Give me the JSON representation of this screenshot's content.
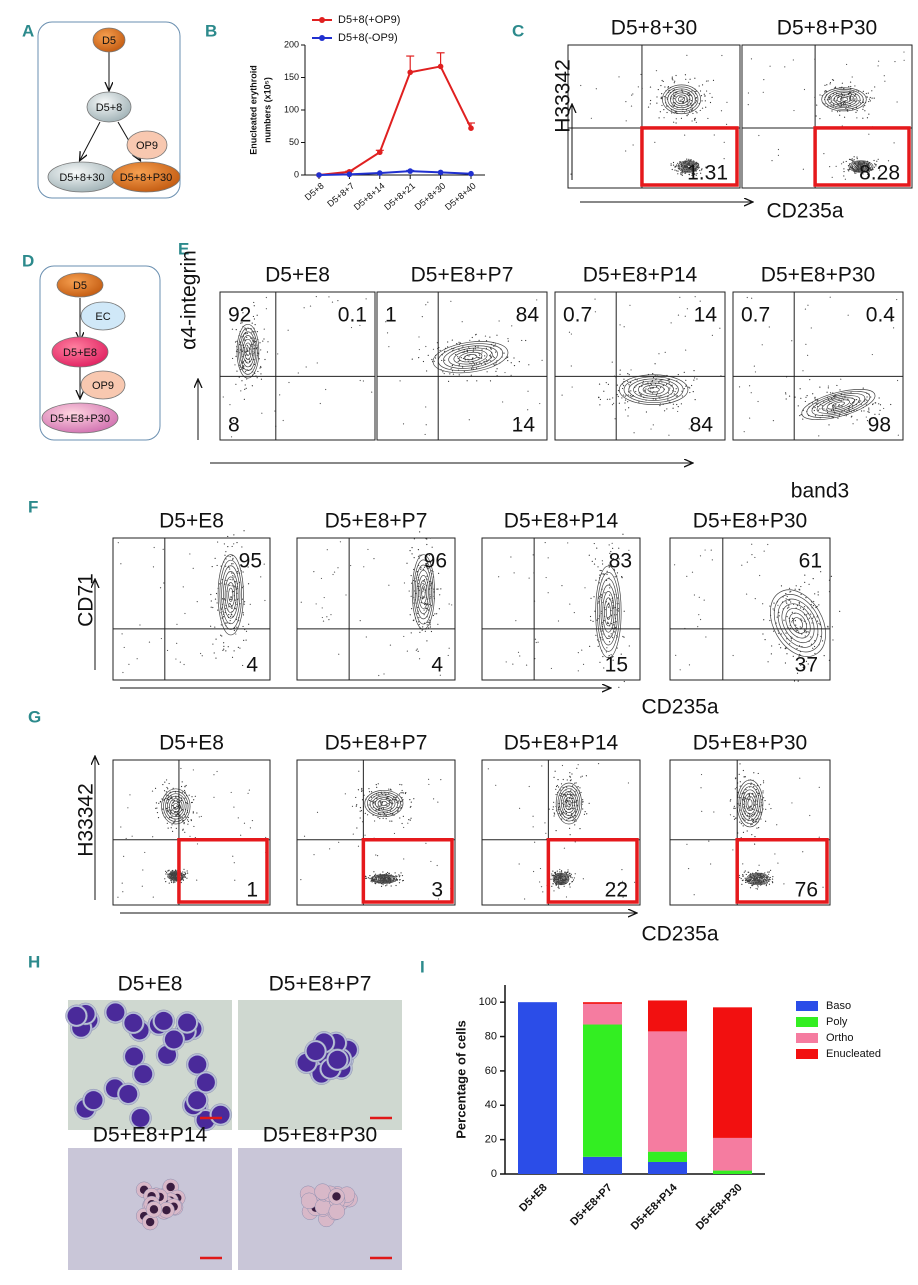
{
  "panel_labels": [
    "A",
    "B",
    "C",
    "D",
    "E",
    "F",
    "G",
    "H",
    "I"
  ],
  "diagram_a": {
    "nodes": [
      "D5",
      "D5+8",
      "OP9",
      "D5+8+30",
      "D5+8+P30"
    ]
  },
  "diagram_d": {
    "nodes": [
      "D5",
      "EC",
      "D5+E8",
      "OP9",
      "D5+E8+P30"
    ]
  },
  "flow_c": {
    "y_label": "H33342",
    "x_label": "CD235a",
    "plots": [
      {
        "title": "D5+8+30",
        "br": 1.31
      },
      {
        "title": "D5+8+P30",
        "br": 8.28
      }
    ]
  },
  "flow_e": {
    "y_label": "α4-integrin",
    "x_label": "band3",
    "plots": [
      {
        "title": "D5+E8",
        "tl": 92,
        "tr": 0.1,
        "bl": 8
      },
      {
        "title": "D5+E8+P7",
        "tl": 1,
        "tr": 84,
        "br": 14
      },
      {
        "title": "D5+E8+P14",
        "tl": 0.7,
        "tr": 14,
        "br": 84
      },
      {
        "title": "D5+E8+P30",
        "tl": 0.7,
        "tr": 0.4,
        "br": 98
      }
    ]
  },
  "flow_f": {
    "y_label": "CD71",
    "x_label": "CD235a",
    "plots": [
      {
        "title": "D5+E8",
        "tr": 95,
        "br": 4
      },
      {
        "title": "D5+E8+P7",
        "tr": 96,
        "br": 4
      },
      {
        "title": "D5+E8+P14",
        "tr": 83,
        "br": 15
      },
      {
        "title": "D5+E8+P30",
        "tr": 61,
        "br": 37
      }
    ]
  },
  "flow_g": {
    "y_label": "H33342",
    "x_label": "CD235a",
    "plots": [
      {
        "title": "D5+E8",
        "br": 1
      },
      {
        "title": "D5+E8+P7",
        "br": 3
      },
      {
        "title": "D5+E8+P14",
        "br": 22
      },
      {
        "title": "D5+E8+P30",
        "br": 76
      }
    ]
  },
  "micrographs_h": {
    "titles": [
      "D5+E8",
      "D5+E8+P7",
      "D5+E8+P14",
      "D5+E8+P30"
    ]
  },
  "chart_data": [
    {
      "type": "line",
      "y_label": [
        "Enucleated erythroid",
        "numbers (x10⁵)"
      ],
      "categories": [
        "D5+8",
        "D5+8+7",
        "D5+8+14",
        "D5+8+21",
        "D5+8+30",
        "D5+8+40"
      ],
      "series": [
        {
          "name": "D5+8(+OP9)",
          "color": "#e02020",
          "values": [
            0,
            5,
            35,
            158,
            167,
            72
          ],
          "errors": [
            0,
            1,
            3,
            25,
            21,
            8
          ]
        },
        {
          "name": "D5+8(-OP9)",
          "color": "#2030d0",
          "values": [
            0,
            1,
            3,
            6,
            4,
            2
          ],
          "errors": [
            0,
            0,
            0,
            1,
            0,
            0
          ]
        }
      ],
      "ylim": [
        0,
        200
      ],
      "yticks": [
        0,
        50,
        100,
        150,
        200
      ],
      "legend": "top"
    },
    {
      "type": "stacked-bar",
      "y_label": "Percentage of cells",
      "categories": [
        "D5+E8",
        "D5+E8+P7",
        "D5+E8+P14",
        "D5+E8+P30"
      ],
      "series": [
        {
          "name": "Baso",
          "color": "#2b4de8",
          "values": [
            100,
            10,
            7,
            0
          ]
        },
        {
          "name": "Poly",
          "color": "#33ee22",
          "values": [
            0,
            77,
            6,
            2
          ]
        },
        {
          "name": "Ortho",
          "color": "#f57ca0",
          "values": [
            0,
            12,
            70,
            19
          ]
        },
        {
          "name": "Enucleated",
          "color": "#f21010",
          "values": [
            0,
            1,
            18,
            76
          ]
        }
      ],
      "ylim": [
        0,
        110
      ],
      "yticks": [
        0,
        20,
        40,
        60,
        80,
        100
      ],
      "legend": "right"
    }
  ]
}
